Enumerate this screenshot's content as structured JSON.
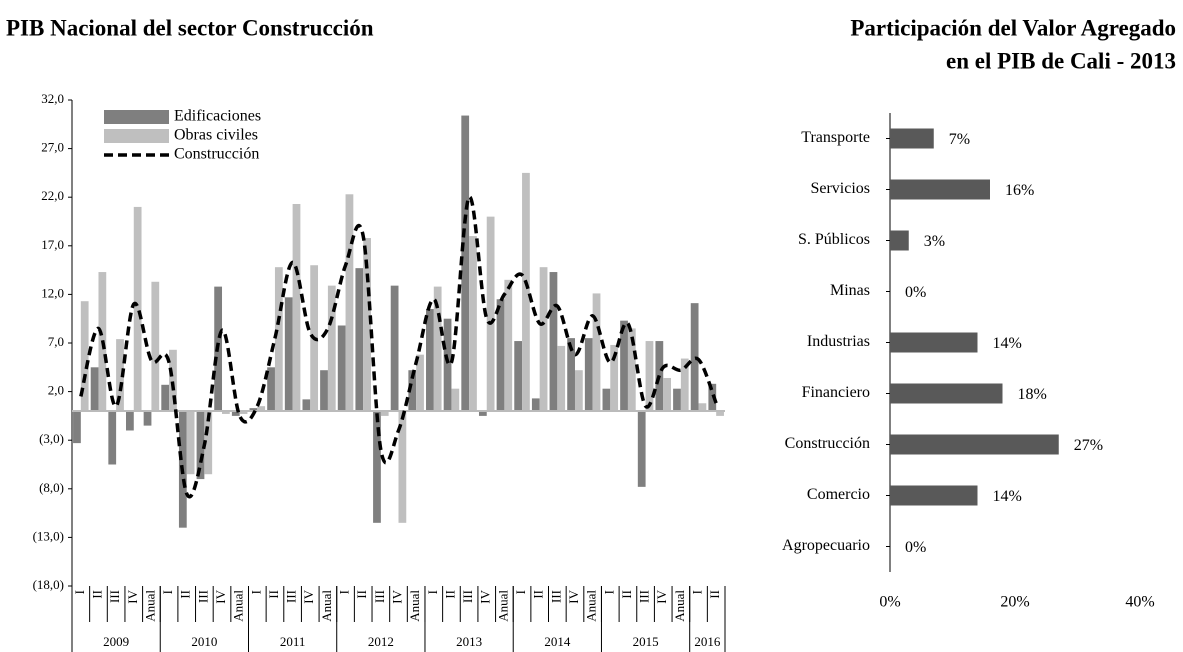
{
  "chart_data": [
    {
      "type": "bar_line",
      "title": "PIB Nacional del sector Construcción",
      "categories": [
        "I",
        "II",
        "III",
        "IV",
        "Anual",
        "I",
        "II",
        "III",
        "IV",
        "Anual",
        "I",
        "II",
        "III",
        "IV",
        "Anual",
        "I",
        "II",
        "III",
        "IV",
        "Anual",
        "I",
        "II",
        "III",
        "IV",
        "Anual",
        "I",
        "II",
        "III",
        "IV",
        "Anual",
        "I",
        "II",
        "III",
        "IV",
        "Anual",
        "I",
        "II"
      ],
      "category_groups": [
        {
          "name": "2009",
          "size": 5
        },
        {
          "name": "2010",
          "size": 5
        },
        {
          "name": "2011",
          "size": 5
        },
        {
          "name": "2012",
          "size": 5
        },
        {
          "name": "2013",
          "size": 5
        },
        {
          "name": "2014",
          "size": 5
        },
        {
          "name": "2015",
          "size": 5
        },
        {
          "name": "2016",
          "size": 2
        }
      ],
      "series": [
        {
          "name": "Edificaciones",
          "kind": "bar",
          "color": "#7f7f7f",
          "values": [
            -3.3,
            4.5,
            -5.5,
            -2.0,
            -1.5,
            2.7,
            -12.0,
            -7.0,
            12.8,
            -0.5,
            0.3,
            4.5,
            11.7,
            1.2,
            4.2,
            8.8,
            14.7,
            -11.5,
            12.9,
            4.2,
            10.5,
            9.5,
            30.4,
            -0.5,
            11.5,
            7.2,
            1.3,
            14.3,
            7.5,
            7.5,
            2.3,
            9.3,
            -7.8,
            7.2,
            2.3,
            11.1,
            2.8
          ]
        },
        {
          "name": "Obras civiles",
          "kind": "bar",
          "color": "#bfbfbf",
          "values": [
            11.3,
            14.3,
            7.4,
            21.0,
            13.3,
            6.3,
            -6.5,
            -6.5,
            -0.3,
            -0.3,
            0.5,
            14.8,
            21.3,
            15.0,
            12.9,
            22.3,
            17.8,
            -0.5,
            -11.5,
            5.8,
            12.8,
            2.3,
            18.0,
            20.0,
            13.5,
            24.5,
            14.8,
            6.7,
            4.2,
            12.1,
            6.8,
            8.5,
            7.2,
            3.4,
            5.4,
            0.8,
            -0.5
          ]
        },
        {
          "name": "Construcción",
          "kind": "line",
          "color": "#000000",
          "values": [
            1.5,
            8.5,
            0.5,
            11.0,
            5.2,
            5.0,
            -8.5,
            -3.5,
            8.3,
            -0.5,
            0.5,
            7.5,
            15.3,
            8.0,
            8.5,
            15.0,
            18.0,
            -4.0,
            -2.0,
            5.0,
            11.5,
            5.0,
            22.0,
            9.5,
            12.0,
            14.0,
            9.0,
            10.8,
            5.8,
            9.8,
            5.0,
            9.0,
            0.5,
            4.5,
            4.2,
            5.3,
            0.8
          ]
        }
      ],
      "ylim": [
        -18,
        32
      ],
      "yticks": [
        {
          "value": 32,
          "label": "32,0"
        },
        {
          "value": 27,
          "label": "27,0"
        },
        {
          "value": 22,
          "label": "22,0"
        },
        {
          "value": 17,
          "label": "17,0"
        },
        {
          "value": 12,
          "label": "12,0"
        },
        {
          "value": 7,
          "label": "7,0"
        },
        {
          "value": 2,
          "label": "2,0"
        },
        {
          "value": -3,
          "label": "(3,0)"
        },
        {
          "value": -8,
          "label": "(8,0)"
        },
        {
          "value": -13,
          "label": "(13,0)"
        },
        {
          "value": -18,
          "label": "(18,0)"
        }
      ],
      "legend": "upper left",
      "grid": false
    },
    {
      "type": "hbar",
      "title": [
        "Participación del Valor Agregado",
        "en el PIB de Cali - 2013"
      ],
      "categories": [
        "Transporte",
        "Servicios",
        "S. Públicos",
        "Minas",
        "Industrias",
        "Financiero",
        "Construcción",
        "Comercio",
        "Agropecuario"
      ],
      "values": [
        7,
        16,
        3,
        0,
        14,
        18,
        27,
        14,
        0
      ],
      "value_labels": [
        "7%",
        "16%",
        "3%",
        "0%",
        "14%",
        "18%",
        "27%",
        "14%",
        "0%"
      ],
      "color": "#595959",
      "xlim": [
        0,
        40
      ],
      "xticks": [
        {
          "value": 0,
          "label": "0%"
        },
        {
          "value": 20,
          "label": "20%"
        },
        {
          "value": 40,
          "label": "40%"
        }
      ],
      "grid": false
    }
  ]
}
